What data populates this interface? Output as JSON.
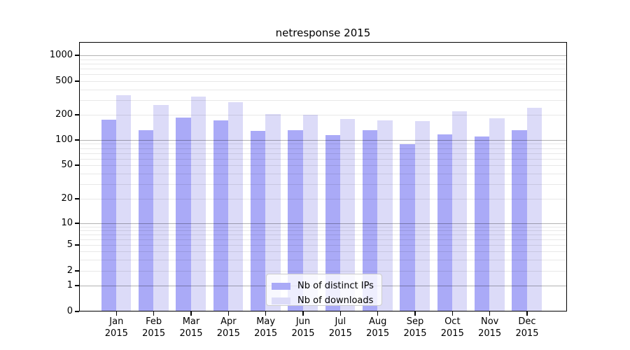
{
  "chart_data": {
    "type": "bar",
    "title": "netresponse 2015",
    "categories": [
      "Jan",
      "Feb",
      "Mar",
      "Apr",
      "May",
      "Jun",
      "Jul",
      "Aug",
      "Sep",
      "Oct",
      "Nov",
      "Dec"
    ],
    "year_label": "2015",
    "series": [
      {
        "name": "Nb of distinct IPs",
        "color": "#aaaaf7",
        "values": [
          172,
          128,
          180,
          167,
          126,
          129,
          112,
          129,
          87,
          115,
          108,
          128
        ]
      },
      {
        "name": "Nb of downloads",
        "color": "#dcdbf8",
        "values": [
          334,
          258,
          321,
          275,
          199,
          197,
          176,
          169,
          166,
          215,
          177,
          236
        ]
      }
    ],
    "yscale": "symlog",
    "yticks": [
      0,
      1,
      2,
      5,
      10,
      20,
      50,
      100,
      200,
      500,
      1000
    ],
    "ylim": [
      0,
      1440
    ],
    "grid": "on",
    "legend_position": "lower-center"
  },
  "colors": {
    "major_grid": "#b2b2b2",
    "minor_grid": "#e7e7e7",
    "spine": "#000000",
    "background": "#ffffff",
    "text": "#000000"
  }
}
